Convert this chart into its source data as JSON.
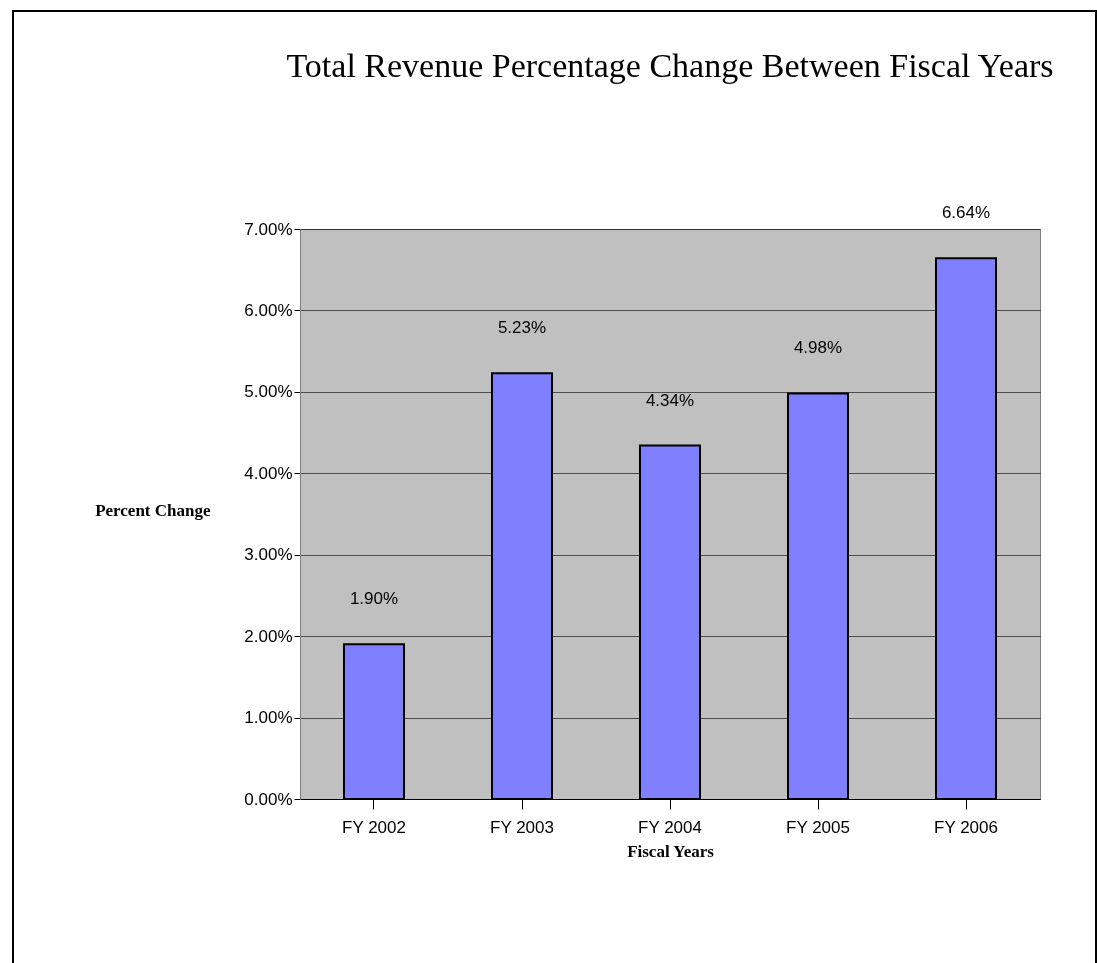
{
  "chart_data": {
    "type": "bar",
    "title": "Total Revenue Percentage Change Between Fiscal Years",
    "xlabel": "Fiscal Years",
    "ylabel": "Percent Change",
    "categories": [
      "FY 2002",
      "FY 2003",
      "FY 2004",
      "FY 2005",
      "FY 2006"
    ],
    "values": [
      1.9,
      5.23,
      4.34,
      4.98,
      6.64
    ],
    "value_labels": [
      "1.90%",
      "5.23%",
      "4.34%",
      "4.98%",
      "6.64%"
    ],
    "color": "#8080ff",
    "ylim": [
      0,
      7
    ],
    "yticks": [
      {
        "value": 0,
        "label": "0.00%"
      },
      {
        "value": 1,
        "label": "1.00%"
      },
      {
        "value": 2,
        "label": "2.00%"
      },
      {
        "value": 3,
        "label": "3.00%"
      },
      {
        "value": 4,
        "label": "4.00%"
      },
      {
        "value": 5,
        "label": "5.00%"
      },
      {
        "value": 6,
        "label": "6.00%"
      },
      {
        "value": 7,
        "label": "7.00%"
      }
    ],
    "grid": "y"
  }
}
